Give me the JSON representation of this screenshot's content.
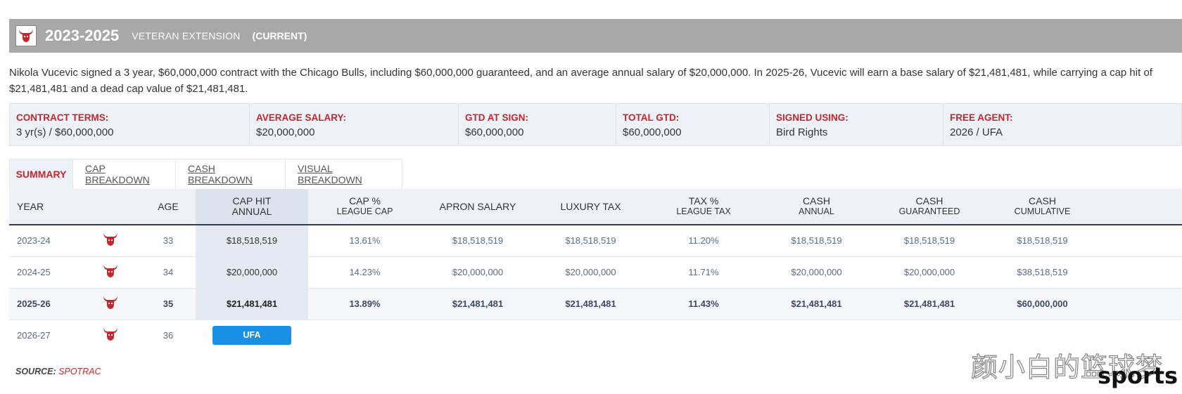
{
  "header": {
    "years": "2023-2025",
    "type": "VETERAN EXTENSION",
    "status": "(CURRENT)",
    "logo_icon": "bull-logo-icon",
    "logo_color": "#c4262e",
    "bar_color": "#a8a8a8"
  },
  "description": "Nikola Vucevic signed a 3 year, $60,000,000 contract with the Chicago Bulls, including $60,000,000 guaranteed, and an average annual salary of $20,000,000. In 2025-26, Vucevic will earn a base salary of $21,481,481, while carrying a cap hit of $21,481,481 and a dead cap value of $21,481,481.",
  "terms": [
    {
      "label": "CONTRACT TERMS:",
      "value": "3 yr(s) / $60,000,000"
    },
    {
      "label": "AVERAGE SALARY:",
      "value": "$20,000,000"
    },
    {
      "label": "GTD AT SIGN:",
      "value": "$60,000,000"
    },
    {
      "label": "TOTAL GTD:",
      "value": "$60,000,000"
    },
    {
      "label": "SIGNED USING:",
      "value": "Bird Rights"
    },
    {
      "label": "FREE AGENT:",
      "value": "2026 / UFA"
    }
  ],
  "tabs": [
    {
      "label": "SUMMARY",
      "active": true
    },
    {
      "label": "CAP BREAKDOWN"
    },
    {
      "label": "CASH BREAKDOWN"
    },
    {
      "label": "VISUAL BREAKDOWN"
    }
  ],
  "table": {
    "headers": {
      "year": "YEAR",
      "age": "AGE",
      "cap_hit": "CAP HIT",
      "cap_hit_sub": "ANNUAL",
      "cap_pct": "CAP %",
      "cap_pct_sub": "LEAGUE CAP",
      "apron": "APRON SALARY",
      "luxury": "LUXURY TAX",
      "tax_pct": "TAX %",
      "tax_pct_sub": "LEAGUE TAX",
      "cash_annual": "CASH",
      "cash_annual_sub": "ANNUAL",
      "cash_gtd": "CASH",
      "cash_gtd_sub": "GUARANTEED",
      "cash_cum": "CASH",
      "cash_cum_sub": "CUMULATIVE"
    },
    "rows": [
      {
        "year": "2023-24",
        "age": "33",
        "cap_hit": "$18,518,519",
        "cap_pct": "13.61%",
        "apron": "$18,518,519",
        "luxury": "$18,518,519",
        "tax_pct": "11.20%",
        "cash_annual": "$18,518,519",
        "cash_gtd": "$18,518,519",
        "cash_cum": "$18,518,519"
      },
      {
        "year": "2024-25",
        "age": "34",
        "cap_hit": "$20,000,000",
        "cap_pct": "14.23%",
        "apron": "$20,000,000",
        "luxury": "$20,000,000",
        "tax_pct": "11.71%",
        "cash_annual": "$20,000,000",
        "cash_gtd": "$20,000,000",
        "cash_cum": "$38,518,519"
      },
      {
        "year": "2025-26",
        "age": "35",
        "cap_hit": "$21,481,481",
        "cap_pct": "13.89%",
        "apron": "$21,481,481",
        "luxury": "$21,481,481",
        "tax_pct": "11.43%",
        "cash_annual": "$21,481,481",
        "cash_gtd": "$21,481,481",
        "cash_cum": "$60,000,000"
      }
    ],
    "future_row": {
      "year": "2026-27",
      "age": "36",
      "badge": "UFA",
      "badge_color": "#1790e6"
    }
  },
  "source": {
    "prefix": "SOURCE:",
    "name": "SPOTRAC"
  },
  "watermark": {
    "chinese": "颜小白的篮球梦",
    "english": "sports"
  }
}
